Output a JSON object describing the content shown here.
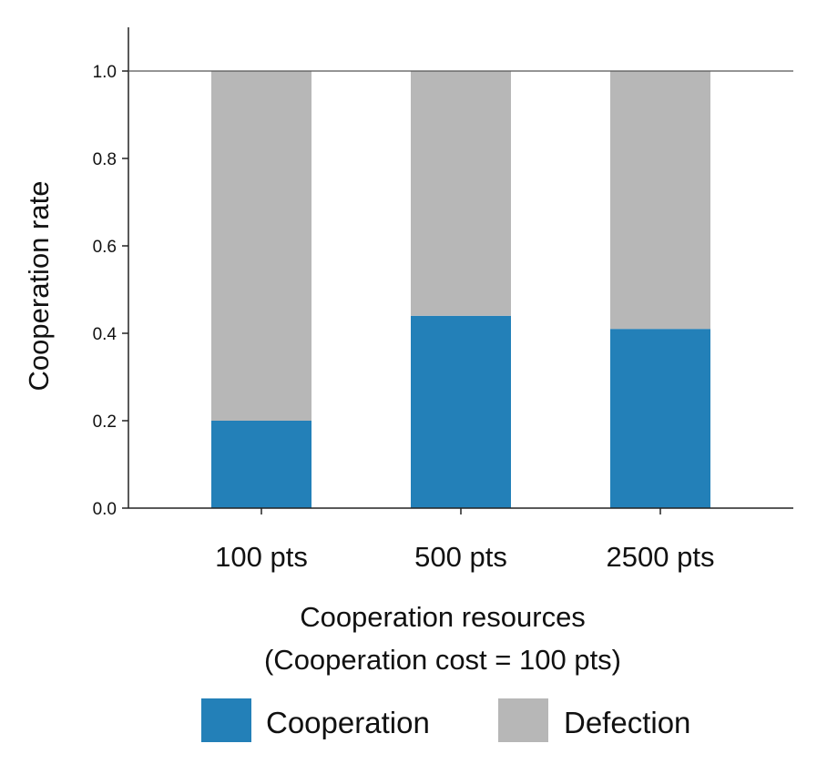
{
  "chart_data": {
    "type": "bar",
    "stacked": true,
    "categories": [
      "100 pts",
      "500 pts",
      "2500 pts"
    ],
    "series": [
      {
        "name": "Cooperation",
        "values": [
          0.2,
          0.44,
          0.41
        ],
        "color": "#2380b8"
      },
      {
        "name": "Defection",
        "values": [
          0.8,
          0.56,
          0.59
        ],
        "color": "#b7b7b7"
      }
    ],
    "title": "",
    "xlabel_lines": [
      "Cooperation resources",
      "(Cooperation cost = 100 pts)"
    ],
    "ylabel": "Cooperation rate",
    "ylim": [
      0,
      1.1
    ],
    "yticks": [
      "0.0",
      "0.2",
      "0.4",
      "0.6",
      "0.8",
      "1.0"
    ],
    "reference_line": 1.0,
    "grid": false,
    "legend": {
      "position": "bottom",
      "entries": [
        "Cooperation",
        "Defection"
      ]
    }
  }
}
